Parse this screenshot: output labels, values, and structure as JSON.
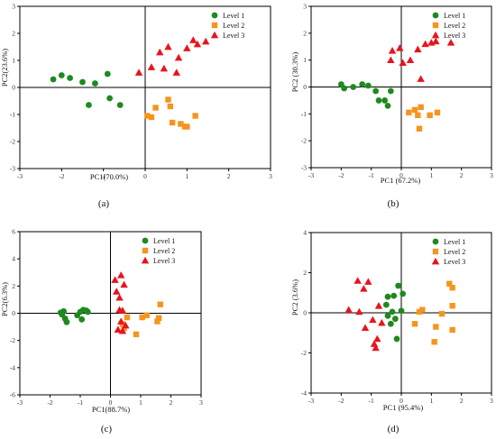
{
  "colors": {
    "level1": "#1e8a1e",
    "level2": "#f7941d",
    "level3": "#e8141c",
    "axis": "#000000"
  },
  "chart_data": [
    {
      "type": "scatter",
      "caption": "(a)",
      "xlabel": "PC1(70.0%)",
      "ylabel": "PC2(23.6%)",
      "xlim": [
        -3,
        3
      ],
      "ylim": [
        -3,
        3
      ],
      "xticks": [
        -3,
        -2,
        -1,
        0,
        1,
        2,
        3
      ],
      "yticks": [
        -3,
        -2,
        -1,
        0,
        1,
        2,
        3
      ],
      "grid": false,
      "legend": "top-right",
      "series": [
        {
          "name": "Level 1",
          "marker": "circle",
          "points": [
            [
              -2.2,
              0.3
            ],
            [
              -2.0,
              0.45
            ],
            [
              -1.8,
              0.35
            ],
            [
              -1.5,
              0.2
            ],
            [
              -1.35,
              -0.65
            ],
            [
              -1.2,
              0.15
            ],
            [
              -0.9,
              0.5
            ],
            [
              -0.85,
              -0.4
            ],
            [
              -0.6,
              -0.65
            ]
          ]
        },
        {
          "name": "Level 2",
          "marker": "square",
          "points": [
            [
              0.05,
              -1.05
            ],
            [
              0.15,
              -1.1
            ],
            [
              0.25,
              -0.75
            ],
            [
              0.55,
              -0.45
            ],
            [
              0.6,
              -0.7
            ],
            [
              0.65,
              -1.3
            ],
            [
              0.85,
              -1.35
            ],
            [
              0.95,
              -1.45
            ],
            [
              1.0,
              -1.45
            ],
            [
              1.2,
              -1.05
            ]
          ]
        },
        {
          "name": "Level 3",
          "marker": "triangle",
          "points": [
            [
              -0.15,
              0.55
            ],
            [
              0.15,
              0.75
            ],
            [
              0.35,
              1.3
            ],
            [
              0.45,
              0.7
            ],
            [
              0.55,
              1.5
            ],
            [
              0.75,
              0.55
            ],
            [
              0.8,
              1.1
            ],
            [
              1.0,
              1.45
            ],
            [
              1.15,
              1.75
            ],
            [
              1.25,
              1.6
            ],
            [
              1.45,
              1.7
            ]
          ]
        }
      ]
    },
    {
      "type": "scatter",
      "caption": "(b)",
      "xlabel": "PC1 (67.2%)",
      "ylabel": "PC2 (30.3%)",
      "xlim": [
        -3,
        3
      ],
      "ylim": [
        -3,
        3
      ],
      "xticks": [
        -3,
        -2,
        -1,
        0,
        1,
        2,
        3
      ],
      "yticks": [
        -3,
        -2,
        -1,
        0,
        1,
        2,
        3
      ],
      "grid": false,
      "legend": "top-right",
      "series": [
        {
          "name": "Level 1",
          "marker": "circle",
          "points": [
            [
              -2.0,
              0.1
            ],
            [
              -1.9,
              -0.05
            ],
            [
              -1.6,
              0.0
            ],
            [
              -1.3,
              0.1
            ],
            [
              -1.1,
              0.05
            ],
            [
              -0.85,
              -0.15
            ],
            [
              -0.75,
              -0.5
            ],
            [
              -0.55,
              -0.5
            ],
            [
              -0.45,
              -0.7
            ],
            [
              -0.35,
              -0.15
            ]
          ]
        },
        {
          "name": "Level 2",
          "marker": "square",
          "points": [
            [
              0.25,
              -0.95
            ],
            [
              0.45,
              -0.85
            ],
            [
              0.55,
              -1.05
            ],
            [
              0.6,
              -1.55
            ],
            [
              0.65,
              -0.75
            ],
            [
              0.95,
              -1.05
            ],
            [
              1.2,
              -0.95
            ]
          ]
        },
        {
          "name": "Level 3",
          "marker": "triangle",
          "points": [
            [
              -0.35,
              1.0
            ],
            [
              -0.3,
              1.35
            ],
            [
              -0.05,
              1.45
            ],
            [
              0.05,
              0.9
            ],
            [
              0.3,
              1.0
            ],
            [
              0.55,
              1.4
            ],
            [
              0.65,
              0.3
            ],
            [
              0.8,
              1.6
            ],
            [
              1.0,
              1.65
            ],
            [
              1.15,
              1.7
            ],
            [
              1.65,
              1.65
            ]
          ]
        }
      ]
    },
    {
      "type": "scatter",
      "caption": "(c)",
      "xlabel": "PC1(88.7%)",
      "ylabel": "PC2(6.3%)",
      "xlim": [
        -3,
        3
      ],
      "ylim": [
        -6,
        6
      ],
      "xticks": [
        -3,
        -2,
        -1,
        0,
        1,
        2,
        3
      ],
      "yticks": [
        -6,
        -4,
        -2,
        0,
        2,
        4,
        6
      ],
      "grid": false,
      "legend": "top-right",
      "series": [
        {
          "name": "Level 1",
          "marker": "circle",
          "points": [
            [
              -1.65,
              0.05
            ],
            [
              -1.6,
              -0.1
            ],
            [
              -1.55,
              0.15
            ],
            [
              -1.5,
              -0.4
            ],
            [
              -1.45,
              -0.65
            ],
            [
              -1.1,
              -0.15
            ],
            [
              -1.0,
              0.1
            ],
            [
              -0.95,
              -0.45
            ],
            [
              -0.9,
              0.25
            ],
            [
              -0.8,
              0.2
            ],
            [
              -0.75,
              0.1
            ]
          ]
        },
        {
          "name": "Level 2",
          "marker": "square",
          "points": [
            [
              0.4,
              -0.8
            ],
            [
              0.45,
              -1.1
            ],
            [
              0.55,
              -0.3
            ],
            [
              0.85,
              -1.55
            ],
            [
              1.05,
              -0.3
            ],
            [
              1.2,
              -0.15
            ],
            [
              1.55,
              -0.6
            ],
            [
              1.6,
              -0.35
            ],
            [
              1.65,
              0.65
            ]
          ]
        },
        {
          "name": "Level 3",
          "marker": "triangle",
          "points": [
            [
              0.15,
              2.45
            ],
            [
              0.2,
              1.6
            ],
            [
              0.25,
              -1.2
            ],
            [
              0.3,
              0.25
            ],
            [
              0.3,
              1.15
            ],
            [
              0.35,
              2.8
            ],
            [
              0.35,
              -0.6
            ],
            [
              0.4,
              0.2
            ],
            [
              0.4,
              -1.3
            ],
            [
              0.45,
              2.1
            ],
            [
              0.5,
              -0.9
            ]
          ]
        }
      ]
    },
    {
      "type": "scatter",
      "caption": "(d)",
      "xlabel": "PC1 (95.4%)",
      "ylabel": "PC2 (3.6%)",
      "xlim": [
        -3,
        3
      ],
      "ylim": [
        -4,
        4
      ],
      "xticks": [
        -3,
        -2,
        -1,
        0,
        1,
        2,
        3
      ],
      "yticks": [
        -4,
        -2,
        0,
        2,
        4
      ],
      "grid": false,
      "legend": "top-right",
      "series": [
        {
          "name": "Level 1",
          "marker": "circle",
          "points": [
            [
              -0.5,
              0.4
            ],
            [
              -0.45,
              -0.15
            ],
            [
              -0.45,
              0.8
            ],
            [
              -0.35,
              -0.55
            ],
            [
              -0.3,
              0.05
            ],
            [
              -0.25,
              0.85
            ],
            [
              -0.2,
              -0.3
            ],
            [
              -0.15,
              -1.3
            ],
            [
              -0.1,
              1.35
            ],
            [
              0.0,
              0.1
            ],
            [
              0.05,
              0.95
            ]
          ]
        },
        {
          "name": "Level 2",
          "marker": "square",
          "points": [
            [
              0.45,
              -0.55
            ],
            [
              0.6,
              0.05
            ],
            [
              0.7,
              0.15
            ],
            [
              1.1,
              -1.45
            ],
            [
              1.15,
              -0.7
            ],
            [
              1.35,
              -0.05
            ],
            [
              1.6,
              1.45
            ],
            [
              1.7,
              1.25
            ],
            [
              1.7,
              0.35
            ],
            [
              1.7,
              -0.85
            ]
          ]
        },
        {
          "name": "Level 3",
          "marker": "triangle",
          "points": [
            [
              -1.75,
              0.15
            ],
            [
              -1.45,
              1.6
            ],
            [
              -1.4,
              0.05
            ],
            [
              -1.25,
              1.2
            ],
            [
              -1.2,
              -0.75
            ],
            [
              -1.1,
              1.55
            ],
            [
              -0.95,
              -0.35
            ],
            [
              -0.9,
              -1.55
            ],
            [
              -0.85,
              -1.75
            ],
            [
              -0.8,
              -1.3
            ],
            [
              -0.75,
              0.35
            ],
            [
              -0.65,
              -0.5
            ]
          ]
        }
      ]
    }
  ]
}
